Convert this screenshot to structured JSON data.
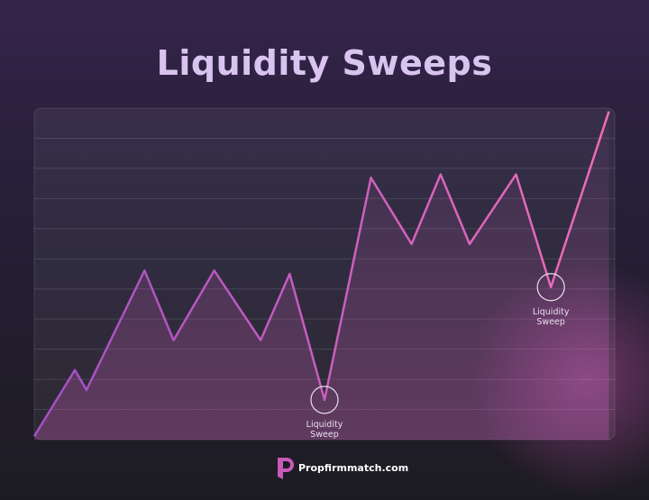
{
  "chart_data": {
    "type": "line",
    "title": "Liquidity Sweeps",
    "x": [
      0,
      7,
      9,
      19,
      24,
      31,
      39,
      44,
      50,
      58,
      65,
      70,
      75,
      83,
      89,
      99
    ],
    "series": [
      {
        "name": null,
        "color": "#e06bc0",
        "values": [
          1,
          21,
          15,
          51,
          30,
          51,
          30,
          50,
          12,
          79,
          59,
          80,
          59,
          80,
          46,
          99
        ]
      }
    ],
    "xlim": [
      0,
      100
    ],
    "ylim": [
      0,
      100
    ],
    "grid": true,
    "annotations": [
      {
        "text": "Liquidity Sweep",
        "x": 50,
        "y": 12
      },
      {
        "text": "Liquidity Sweep",
        "x": 89,
        "y": 46
      }
    ],
    "footer": "Propfirmmatch.com"
  }
}
